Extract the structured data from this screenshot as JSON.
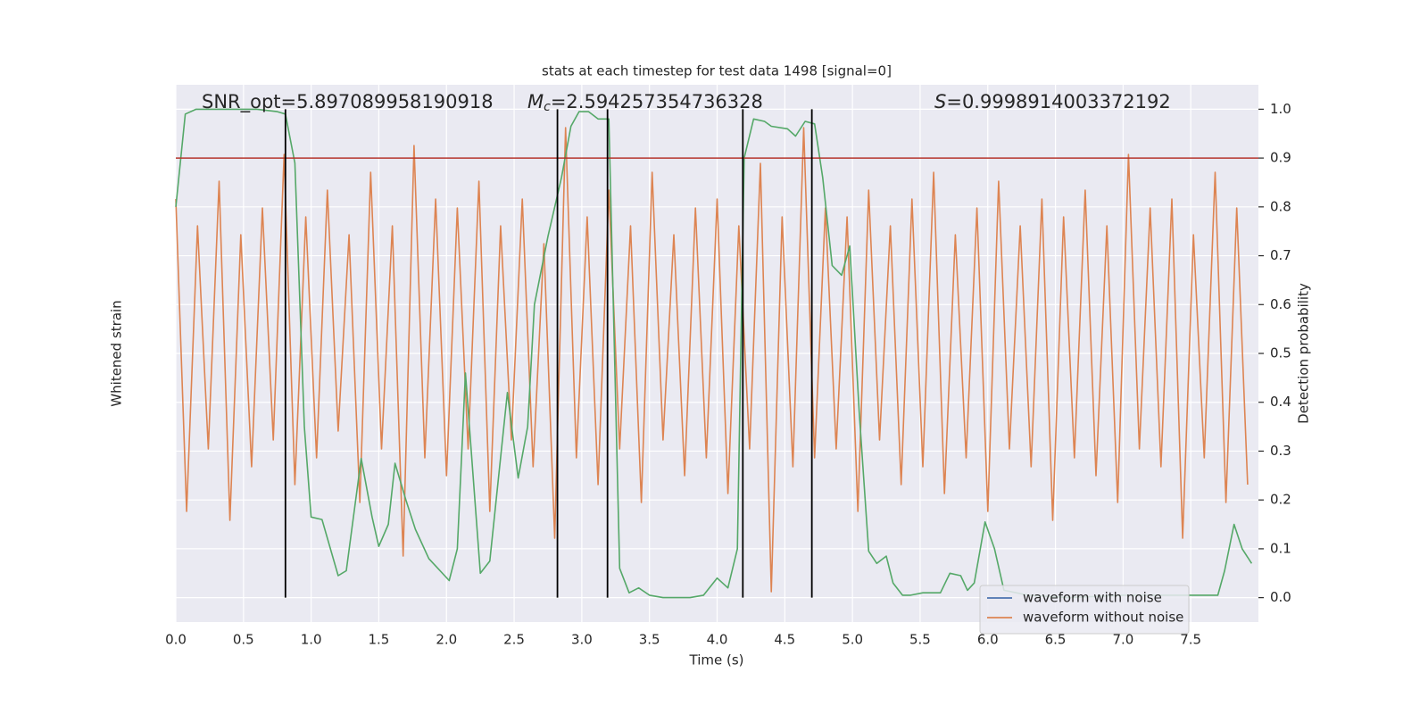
{
  "chart_data": {
    "type": "line",
    "title": "stats at each timestep for test data 1498 [signal=0]",
    "xlabel": "Time (s)",
    "ylabel": "Whitened strain",
    "y2label": "Detection probability",
    "annotations": [
      {
        "text": "SNR_opt=5.897089958190918"
      },
      {
        "symbol": "M",
        "subscript": "c",
        "text": "=2.594257354736328"
      },
      {
        "symbol": "S",
        "text": "=0.9998914003372192"
      }
    ],
    "xlim": [
      0,
      8
    ],
    "xticks": [
      {
        "value": 0,
        "label": "0.0"
      },
      {
        "value": 0.5,
        "label": "0.5"
      },
      {
        "value": 1,
        "label": "1.0"
      },
      {
        "value": 1.5,
        "label": "1.5"
      },
      {
        "value": 2,
        "label": "2.0"
      },
      {
        "value": 2.5,
        "label": "2.5"
      },
      {
        "value": 3,
        "label": "3.0"
      },
      {
        "value": 3.5,
        "label": "3.5"
      },
      {
        "value": 4,
        "label": "4.0"
      },
      {
        "value": 4.5,
        "label": "4.5"
      },
      {
        "value": 5,
        "label": "5.0"
      },
      {
        "value": 5.5,
        "label": "5.5"
      },
      {
        "value": 6,
        "label": "6.0"
      },
      {
        "value": 6.5,
        "label": "6.5"
      },
      {
        "value": 7,
        "label": "7.0"
      },
      {
        "value": 7.5,
        "label": "7.5"
      }
    ],
    "ylim": [
      -3.14,
      2.88
    ],
    "y2lim": [
      -0.05,
      1.05
    ],
    "y2ticks": [
      {
        "value": 0,
        "label": "0.0"
      },
      {
        "value": 0.1,
        "label": "0.1"
      },
      {
        "value": 0.2,
        "label": "0.2"
      },
      {
        "value": 0.3,
        "label": "0.3"
      },
      {
        "value": 0.4,
        "label": "0.4"
      },
      {
        "value": 0.5,
        "label": "0.5"
      },
      {
        "value": 0.6,
        "label": "0.6"
      },
      {
        "value": 0.7,
        "label": "0.7"
      },
      {
        "value": 0.8,
        "label": "0.8"
      },
      {
        "value": 0.9,
        "label": "0.9"
      },
      {
        "value": 1,
        "label": "1.0"
      }
    ],
    "grid": true,
    "threshold": 0.9,
    "threshold_color": "#b5352c",
    "vlines": [
      0.81,
      2.82,
      3.19,
      4.19,
      4.7
    ],
    "vline_color": "#000000",
    "legend": "lower right",
    "series": [
      {
        "name": "waveform with noise",
        "color": "#4c72b0",
        "x": [],
        "values": []
      },
      {
        "name": "waveform without noise",
        "color": "#dd8452",
        "x": [
          0,
          0.08,
          0.16,
          0.24,
          0.32,
          0.4,
          0.48,
          0.56,
          0.64,
          0.72,
          0.8,
          0.88,
          0.96,
          1.04,
          1.12,
          1.2,
          1.28,
          1.36,
          1.44,
          1.52,
          1.6,
          1.68,
          1.76,
          1.84,
          1.92,
          2,
          2.08,
          2.16,
          2.24,
          2.32,
          2.4,
          2.48,
          2.56,
          2.64,
          2.72,
          2.8,
          2.88,
          2.96,
          3.04,
          3.12,
          3.2,
          3.28,
          3.36,
          3.44,
          3.52,
          3.6,
          3.68,
          3.76,
          3.84,
          3.92,
          4,
          4.08,
          4.16,
          4.24,
          4.32,
          4.4,
          4.48,
          4.56,
          4.64,
          4.72,
          4.8,
          4.88,
          4.96,
          5.04,
          5.12,
          5.2,
          5.28,
          5.36,
          5.44,
          5.52,
          5.6,
          5.68,
          5.76,
          5.84,
          5.92,
          6,
          6.08,
          6.16,
          6.24,
          6.32,
          6.4,
          6.48,
          6.56,
          6.64,
          6.72,
          6.8,
          6.88,
          6.96,
          7.04,
          7.12,
          7.2,
          7.28,
          7.36,
          7.44,
          7.52,
          7.6,
          7.68,
          7.76,
          7.84,
          7.92
        ],
        "values": [
          1.6,
          -1.9,
          1.3,
          -1.2,
          1.8,
          -2.0,
          1.2,
          -1.4,
          1.5,
          -1.1,
          2.1,
          -1.6,
          1.4,
          -1.3,
          1.7,
          -1.0,
          1.2,
          -1.8,
          1.9,
          -1.2,
          1.3,
          -2.4,
          2.2,
          -1.3,
          1.6,
          -1.5,
          1.5,
          -1.2,
          1.8,
          -1.9,
          1.3,
          -1.1,
          1.6,
          -1.4,
          1.1,
          -2.2,
          2.4,
          -1.3,
          1.4,
          -1.6,
          1.7,
          -1.2,
          1.3,
          -1.8,
          1.9,
          -1.1,
          1.2,
          -1.5,
          1.5,
          -1.3,
          1.6,
          -1.7,
          1.3,
          -1.2,
          2.0,
          -2.8,
          1.4,
          -1.4,
          2.4,
          -1.3,
          1.5,
          -1.2,
          1.4,
          -1.9,
          1.7,
          -1.1,
          1.3,
          -1.6,
          1.6,
          -1.4,
          1.9,
          -1.7,
          1.2,
          -1.3,
          1.5,
          -1.9,
          1.8,
          -1.2,
          1.3,
          -1.4,
          1.6,
          -2.0,
          1.4,
          -1.3,
          1.7,
          -1.5,
          1.3,
          -1.8,
          2.1,
          -1.2,
          1.5,
          -1.4,
          1.6,
          -2.2,
          1.2,
          -1.3,
          1.9,
          -1.8,
          1.5,
          -1.6
        ]
      },
      {
        "color": "#55a868",
        "axis": "y2",
        "x": [
          0.0,
          0.07,
          0.15,
          0.3,
          0.45,
          0.6,
          0.75,
          0.81,
          0.88,
          0.95,
          1.0,
          1.08,
          1.2,
          1.26,
          1.37,
          1.45,
          1.5,
          1.57,
          1.62,
          1.7,
          1.77,
          1.87,
          2.02,
          2.08,
          2.14,
          2.25,
          2.32,
          2.45,
          2.53,
          2.6,
          2.65,
          2.75,
          2.85,
          2.92,
          2.98,
          3.05,
          3.12,
          3.2,
          3.28,
          3.35,
          3.42,
          3.5,
          3.6,
          3.8,
          3.9,
          4.0,
          4.08,
          4.15,
          4.2,
          4.27,
          4.35,
          4.4,
          4.52,
          4.58,
          4.65,
          4.72,
          4.78,
          4.85,
          4.92,
          4.98,
          5.05,
          5.12,
          5.18,
          5.25,
          5.3,
          5.37,
          5.43,
          5.52,
          5.65,
          5.72,
          5.8,
          5.85,
          5.9,
          5.98,
          6.05,
          6.12,
          6.3,
          6.6,
          7.0,
          7.4,
          7.6,
          7.7,
          7.75,
          7.82,
          7.88,
          7.95
        ],
        "values": [
          0.8,
          0.99,
          1.0,
          1.0,
          1.0,
          1.0,
          0.995,
          0.99,
          0.89,
          0.35,
          0.165,
          0.16,
          0.045,
          0.055,
          0.285,
          0.165,
          0.105,
          0.15,
          0.275,
          0.2,
          0.14,
          0.08,
          0.035,
          0.1,
          0.46,
          0.05,
          0.075,
          0.42,
          0.245,
          0.35,
          0.6,
          0.74,
          0.86,
          0.965,
          0.995,
          0.995,
          0.98,
          0.98,
          0.06,
          0.01,
          0.02,
          0.005,
          0.0,
          0.0,
          0.005,
          0.04,
          0.02,
          0.1,
          0.9,
          0.98,
          0.975,
          0.965,
          0.96,
          0.945,
          0.975,
          0.97,
          0.86,
          0.68,
          0.66,
          0.72,
          0.38,
          0.095,
          0.07,
          0.085,
          0.03,
          0.005,
          0.005,
          0.01,
          0.01,
          0.05,
          0.045,
          0.015,
          0.03,
          0.155,
          0.1,
          0.015,
          0.005,
          0.0,
          0.005,
          0.005,
          0.005,
          0.005,
          0.055,
          0.15,
          0.1,
          0.07
        ]
      }
    ]
  }
}
